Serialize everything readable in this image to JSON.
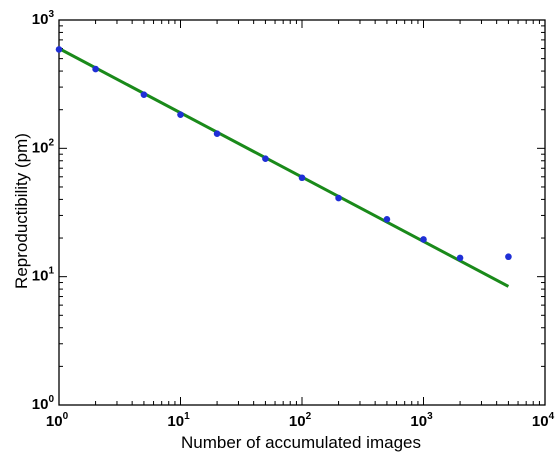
{
  "chart_data": {
    "type": "scatter",
    "title": "",
    "xlabel": "Number of accumulated images",
    "ylabel": "Reproductibility (pm)",
    "xscale": "log",
    "yscale": "log",
    "xlim": [
      1,
      10000
    ],
    "ylim": [
      1,
      1000
    ],
    "grid": false,
    "x_ticks": [
      {
        "value": 1,
        "base": "10",
        "exp": "0"
      },
      {
        "value": 10,
        "base": "10",
        "exp": "1"
      },
      {
        "value": 100,
        "base": "10",
        "exp": "2"
      },
      {
        "value": 1000,
        "base": "10",
        "exp": "3"
      },
      {
        "value": 10000,
        "base": "10",
        "exp": "4"
      }
    ],
    "y_ticks": [
      {
        "value": 1,
        "base": "10",
        "exp": "0"
      },
      {
        "value": 10,
        "base": "10",
        "exp": "1"
      },
      {
        "value": 100,
        "base": "10",
        "exp": "2"
      },
      {
        "value": 1000,
        "base": "10",
        "exp": "3"
      }
    ],
    "series": [
      {
        "kind": "points",
        "color": "#1f2fd6",
        "x": [
          1,
          2,
          5,
          10,
          20,
          50,
          100,
          200,
          500,
          1000,
          2000,
          5000
        ],
        "y": [
          590,
          415,
          262,
          183,
          130,
          83,
          59,
          41,
          28,
          19.5,
          14,
          14.3
        ]
      },
      {
        "kind": "fit-line",
        "color": "#1a8a1a",
        "x": [
          1,
          5000
        ],
        "y": [
          600,
          8.4
        ]
      }
    ]
  }
}
